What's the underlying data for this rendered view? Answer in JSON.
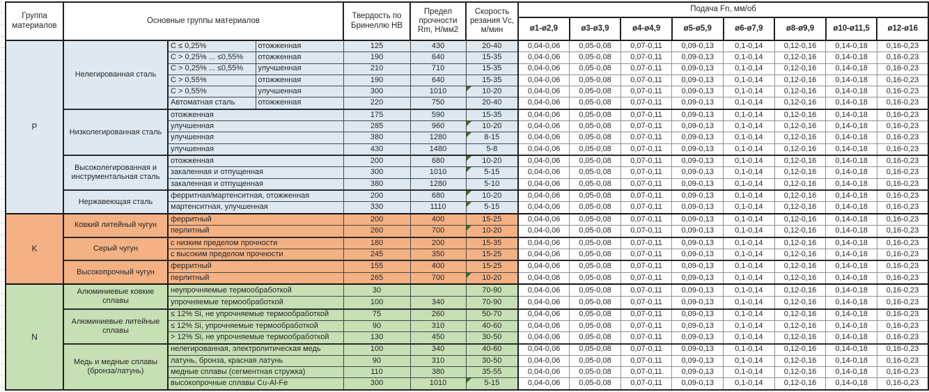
{
  "table": {
    "headers": {
      "group_col": "Группа материалов",
      "main_groups": "Основные группы материалов",
      "hardness": "Твердость по Бринеллю HB",
      "strength": "Предел прочности Rm, Н/мм2",
      "speed": "Скорость резания Vc, м/мин",
      "feed": "Подача Fn, мм/об",
      "feed_diameters": [
        "ø1-ø2,9",
        "ø3-ø3,9",
        "ø4-ø4,9",
        "ø5-ø5,9",
        "ø6-ø7,9",
        "ø8-ø9,9",
        "ø10-ø11,5",
        "ø12-ø16"
      ]
    },
    "feed_values": [
      "0,04-0,06",
      "0,05-0,08",
      "0,07-0,11",
      "0,09-0,13",
      "0,1-0,14",
      "0,12-0,16",
      "0,14-0,18",
      "0,16-0,23"
    ],
    "colors": {
      "section_p": "#dde8f1",
      "section_k": "#f4b183",
      "section_n": "#c6dfb4",
      "note_triangle": "#337321",
      "border_dark": "#1f1f1f"
    },
    "sections": [
      {
        "group": "P",
        "color": "#dde8f1",
        "subgroups": [
          {
            "name": "Нелегированная сталь",
            "rows": [
              {
                "subtype": "C ≤ 0,25%",
                "condition": "отожженная",
                "hb": "125",
                "rm": "430",
                "vc": "20-40",
                "note": false
              },
              {
                "subtype": "C > 0,25% ... ≤0,55%",
                "condition": "отожженная",
                "hb": "190",
                "rm": "640",
                "vc": "15-35",
                "note": false
              },
              {
                "subtype": "C > 0,25% ... ≤0,55%",
                "condition": "улучшенная",
                "hb": "210",
                "rm": "710",
                "vc": "15-35",
                "note": false
              },
              {
                "subtype": "C > 0,55%",
                "condition": "отожженная",
                "hb": "190",
                "rm": "640",
                "vc": "15-35",
                "note": false
              },
              {
                "subtype": "C > 0,55%",
                "condition": "улучшенная",
                "hb": "300",
                "rm": "1010",
                "vc": "10-20",
                "note": true
              },
              {
                "subtype": "Автоматная сталь",
                "condition": "отожженная",
                "hb": "220",
                "rm": "750",
                "vc": "20-40",
                "note": false
              }
            ]
          },
          {
            "name": "Низколегированная сталь",
            "rows": [
              {
                "desc": "отожженная",
                "hb": "175",
                "rm": "590",
                "vc": "15-35",
                "note": false
              },
              {
                "desc": "улучшенная",
                "hb": "285",
                "rm": "960",
                "vc": "10-20",
                "note": true
              },
              {
                "desc": "улучшенная",
                "hb": "380",
                "rm": "1280",
                "vc": "8-15",
                "note": true
              },
              {
                "desc": "улучшенная",
                "hb": "430",
                "rm": "1480",
                "vc": "5-8",
                "note": false
              }
            ]
          },
          {
            "name": "Высоколегированная и инструментальная сталь",
            "rows": [
              {
                "desc": "отожженная",
                "hb": "200",
                "rm": "680",
                "vc": "10-20",
                "note": true
              },
              {
                "desc": "закаленная и отпущенная",
                "hb": "300",
                "rm": "1010",
                "vc": "5-15",
                "note": true
              },
              {
                "desc": "закаленная и отпущенная",
                "hb": "380",
                "rm": "1280",
                "vc": "5-10",
                "note": false
              }
            ]
          },
          {
            "name": "Нержавеющая сталь",
            "rows": [
              {
                "desc": "ферритная/мартенситная, отожженная",
                "hb": "200",
                "rm": "680",
                "vc": "10-20",
                "note": true
              },
              {
                "desc": "мартенситная, улучшенная",
                "hb": "330",
                "rm": "1110",
                "vc": "5-15",
                "note": true
              }
            ]
          }
        ]
      },
      {
        "group": "K",
        "color": "#f4b183",
        "subgroups": [
          {
            "name": "Ковкий литейный чугун",
            "rows": [
              {
                "desc": "ферритный",
                "hb": "200",
                "rm": "400",
                "vc": "15-25",
                "note": false
              },
              {
                "desc": "перлитный",
                "hb": "260",
                "rm": "700",
                "vc": "10-20",
                "note": true
              }
            ]
          },
          {
            "name": "Серый чугун",
            "rows": [
              {
                "desc": "с низким пределом прочности",
                "hb": "180",
                "rm": "200",
                "vc": "15-35",
                "note": false
              },
              {
                "desc": "с высоким пределом прочности",
                "hb": "245",
                "rm": "350",
                "vc": "15-25",
                "note": false
              }
            ]
          },
          {
            "name": "Высокопрочный чугун",
            "rows": [
              {
                "desc": "ферритный",
                "hb": "155",
                "rm": "400",
                "vc": "15-25",
                "note": false
              },
              {
                "desc": "перлитный",
                "hb": "265",
                "rm": "700",
                "vc": "10-20",
                "note": true
              }
            ]
          }
        ]
      },
      {
        "group": "N",
        "color": "#c6dfb4",
        "subgroups": [
          {
            "name": "Алюминиевые ковкие сплавы",
            "rows": [
              {
                "desc": "неупрочняемые термообработкой",
                "hb": "30",
                "rm": "",
                "vc": "70-90",
                "note": false
              },
              {
                "desc": "упрочняемые термообработкой",
                "hb": "100",
                "rm": "340",
                "vc": "70-90",
                "note": false
              }
            ]
          },
          {
            "name": "Алюминиевые литейные сплавы",
            "rows": [
              {
                "desc": "≤ 12% Si, не упрочняемые термообработкой",
                "hb": "75",
                "rm": "260",
                "vc": "50-70",
                "note": false
              },
              {
                "desc": "≤ 12% Si, упрочняемые термообработкой",
                "hb": "90",
                "rm": "310",
                "vc": "40-60",
                "note": false
              },
              {
                "desc": "> 12% Si, не упрочняемые термообработкой",
                "hb": "130",
                "rm": "450",
                "vc": "30-50",
                "note": false
              }
            ]
          },
          {
            "name": "Медь и медные сплавы (бронза/латунь)",
            "rows": [
              {
                "desc": "нелегированная, электролитическая медь",
                "hb": "100",
                "rm": "340",
                "vc": "40-60",
                "note": false
              },
              {
                "desc": "латунь, бронза, красная латунь",
                "hb": "90",
                "rm": "310",
                "vc": "30-50",
                "note": false
              },
              {
                "desc": "медные сплавы (сегментная стружка)",
                "hb": "110",
                "rm": "380",
                "vc": "35-55",
                "note": false
              },
              {
                "desc": "высокопрочные сплавы Cu-Al-Fe",
                "hb": "300",
                "rm": "1010",
                "vc": "5-15",
                "note": true
              }
            ]
          }
        ]
      }
    ]
  }
}
